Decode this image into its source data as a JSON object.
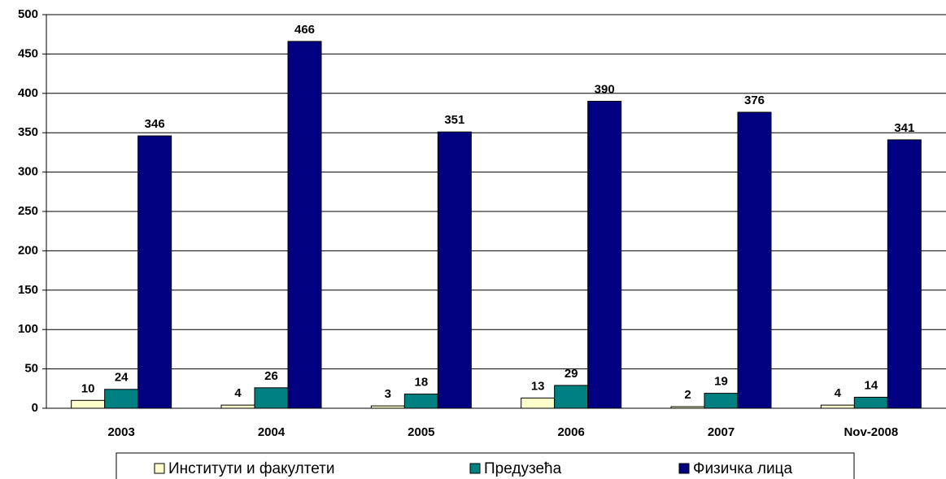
{
  "chart_data": {
    "type": "bar",
    "categories": [
      "2003",
      "2004",
      "2005",
      "2006",
      "2007",
      "Nov-2008"
    ],
    "series": [
      {
        "name": "Институти и факултети",
        "color": "#ffffcc",
        "values": [
          10,
          4,
          3,
          13,
          2,
          4
        ]
      },
      {
        "name": "Предузећа",
        "color": "#008080",
        "values": [
          24,
          26,
          18,
          29,
          19,
          14
        ]
      },
      {
        "name": "Физичка лица",
        "color": "#000080",
        "values": [
          346,
          466,
          351,
          390,
          376,
          341
        ]
      }
    ],
    "ylim": [
      0,
      500
    ],
    "yticks": [
      0,
      50,
      100,
      150,
      200,
      250,
      300,
      350,
      400,
      450,
      500
    ],
    "grid": true,
    "legend": "bottom"
  }
}
